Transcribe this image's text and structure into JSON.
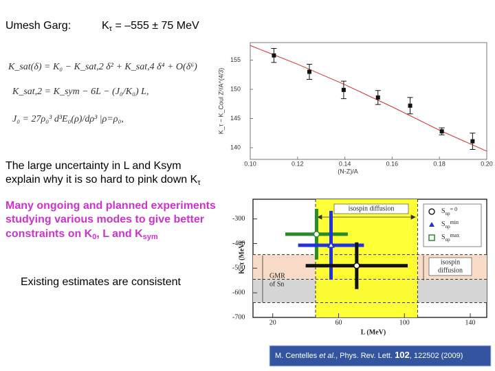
{
  "header": {
    "author": "Umesh Garg:",
    "result": [
      "K",
      "τ",
      " = –555 ± 75 MeV"
    ]
  },
  "formulas": [
    "K_sat(δ) = K₀ − K_sat,2 δ² + K_sat,4 δ⁴ + O(δ⁶)",
    "K_sat,2 = K_sym − 6L − (J₀/K₀) L,",
    "J₀ = 27ρ₀³ d³E₀(ρ)/dρ³ |ρ=ρ₀,"
  ],
  "text1": [
    "The large uncertainty in L and Ksym",
    "explain why it is so hard to pink down K",
    "τ"
  ],
  "text2": [
    "Many ongoing and planned experiments",
    "studying various modes to give better",
    "constraints on K",
    "0",
    ", L and K",
    "sym"
  ],
  "text3": "Existing estimates are consistent",
  "reference": [
    "M. Centelles ",
    "et al.",
    ", Phys. Rev. Lett. ",
    "102",
    ", 122502 (2009)"
  ],
  "plot1": {
    "x_label": "(N-Z)/A",
    "y_label": "K_τ − K_Coul Z²/A^(4/3)",
    "xlim": [
      0.1,
      0.2
    ],
    "ylim": [
      138,
      158
    ],
    "xticks": [
      {
        "value": 0.1,
        "label": "0.10"
      },
      {
        "value": 0.12,
        "label": "0.12"
      },
      {
        "value": 0.14,
        "label": "0.14"
      },
      {
        "value": 0.16,
        "label": "0.16"
      },
      {
        "value": 0.18,
        "label": "0.18"
      },
      {
        "value": 0.2,
        "label": "0.20"
      }
    ],
    "yticks": [
      140,
      145,
      150,
      155
    ],
    "points": {
      "color": "#111111",
      "x": [
        0.11,
        0.125,
        0.1395,
        0.154,
        0.1676,
        0.181,
        0.194
      ],
      "y": [
        155.8,
        153.0,
        149.9,
        148.6,
        147.2,
        142.8,
        141.1
      ],
      "yerr": [
        1.2,
        1.3,
        1.5,
        1.2,
        1.4,
        0.6,
        1.4
      ]
    },
    "fit": {
      "color": "#d03030",
      "x": [
        0.1,
        0.12,
        0.14,
        0.16,
        0.18,
        0.2
      ],
      "y": [
        157.5,
        154.3,
        150.8,
        147.0,
        143.0,
        139.4
      ]
    }
  },
  "plot2": {
    "x_label": "L (MeV)",
    "y_label": "K_τ (MeV)",
    "xlim": [
      8,
      150
    ],
    "ylim": [
      -700,
      -220
    ],
    "xticks": [
      20,
      60,
      100,
      140
    ],
    "yticks": [
      -300,
      -400,
      -500,
      -600,
      -700
    ],
    "bands": {
      "yellow": [
        46,
        108
      ],
      "pink": [
        -545,
        -445
      ],
      "grey": [
        -640,
        -545
      ]
    },
    "annotations": {
      "top": "isospin diffusion",
      "right": [
        "isospin",
        "diffusion"
      ],
      "gmr": [
        "GMR",
        "of Sn"
      ]
    },
    "legend": [
      {
        "s": "S",
        "sub": "np",
        "sup": "= 0",
        "color": "#222222"
      },
      {
        "s": "S",
        "sub": "np",
        "sup": "min",
        "color": "#2233cc"
      },
      {
        "s": "S",
        "sub": "np",
        "sup": "max",
        "color": "#2a8a2a"
      }
    ],
    "crosses": [
      {
        "color": "#2a8a2a",
        "x": 46.6,
        "y": -362,
        "xerr": 19,
        "yerr": 103
      },
      {
        "color": "#2233dd",
        "x": 55.4,
        "y": -407,
        "xerr": 20,
        "yerr": 140
      },
      {
        "color": "#111111",
        "x": 71,
        "y": -490,
        "xerr": 31,
        "yerr": 95
      }
    ]
  }
}
